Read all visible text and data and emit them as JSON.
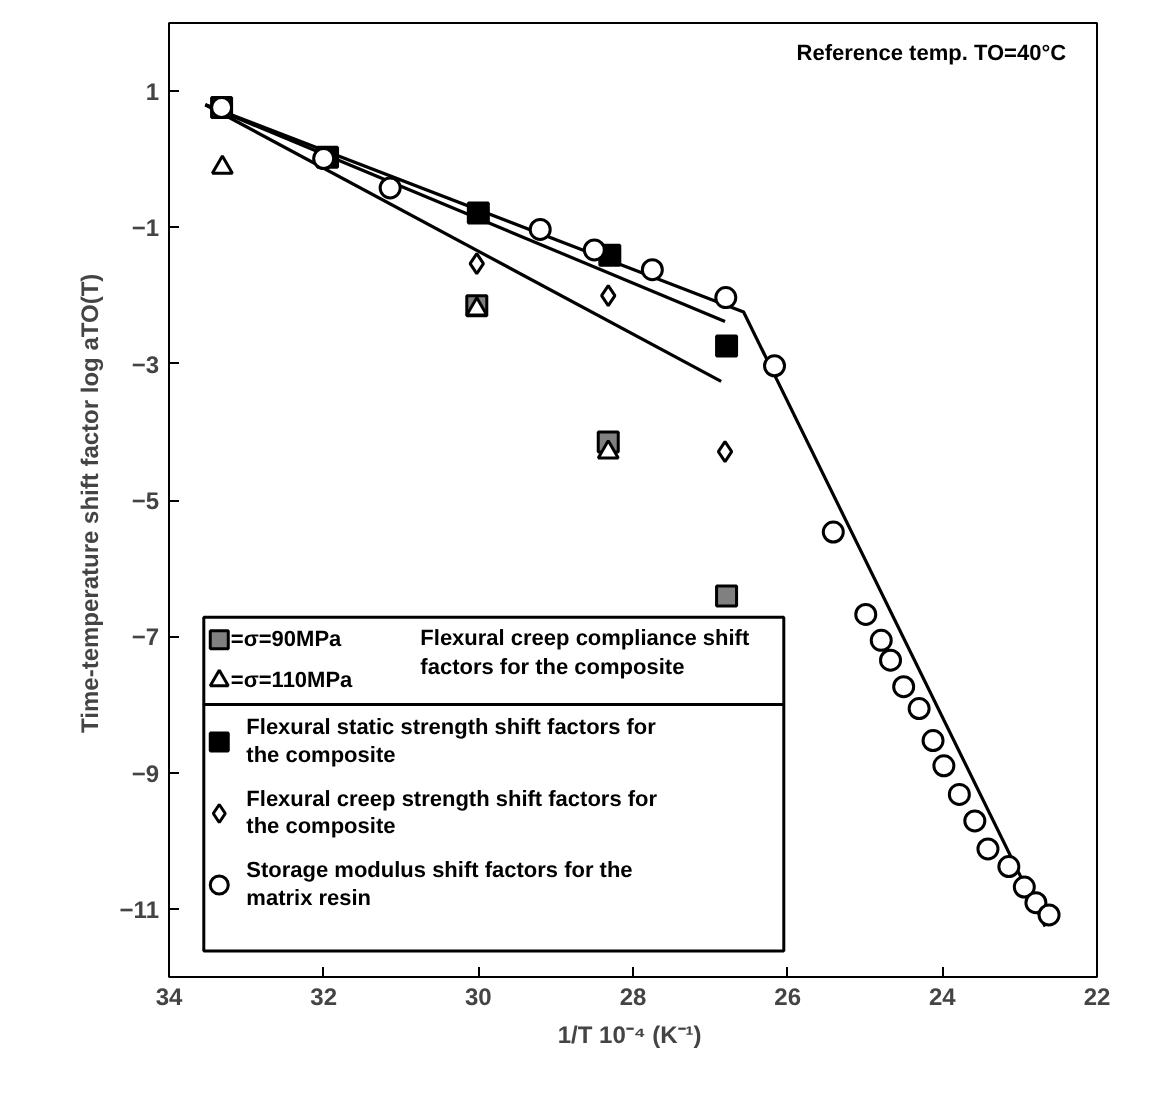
{
  "chart_data": {
    "type": "scatter",
    "xlabel": "1/T  10⁻⁴ (K⁻¹)",
    "ylabel": "Time-temperature shift factor  log aTO(T)",
    "xlim": [
      34,
      22
    ],
    "ylim": [
      -12,
      2
    ],
    "xticks": [
      34,
      32,
      30,
      28,
      26,
      24,
      22
    ],
    "yticks": [
      1,
      -1,
      -3,
      -5,
      -7,
      -9,
      -11
    ],
    "grid": false,
    "legend": "bottom left",
    "annotations": [
      "Reference temp. TO=40°C",
      "Flexural creep compliance shift factors for the composite"
    ],
    "series": [
      {
        "type": "line",
        "color": "#000000",
        "marker": "none",
        "x": [
          33.53,
          26.57,
          22.67
        ],
        "values": [
          0.8,
          -2.24,
          -11.26
        ]
      },
      {
        "type": "line",
        "color": "#000000",
        "marker": "none",
        "x": [
          33.53,
          26.81
        ],
        "values": [
          0.8,
          -2.38
        ]
      },
      {
        "type": "line",
        "color": "#000000",
        "marker": "none",
        "x": [
          33.53,
          26.86
        ],
        "values": [
          0.8,
          -3.26
        ]
      },
      {
        "name": "=σ=90MPa",
        "color": "#808080",
        "marker": "square",
        "x": [
          33.32,
          30.02,
          28.32,
          26.79
        ],
        "values": [
          0.76,
          -2.15,
          -4.15,
          -6.41
        ]
      },
      {
        "name": "=σ=110MPa",
        "color": "#ffffff",
        "marker": "triangle",
        "x": [
          33.31,
          30.02,
          28.32
        ],
        "values": [
          -0.12,
          -2.2,
          -4.3
        ]
      },
      {
        "name": "Flexural static strength shift factors for the composite",
        "color": "#000000",
        "marker": "square",
        "x": [
          31.95,
          30.0,
          28.3,
          26.79
        ],
        "values": [
          0.03,
          -0.79,
          -1.41,
          -2.74
        ]
      },
      {
        "name": "Flexural creep strength shift factors for the composite",
        "color": "#ffffff",
        "marker": "diamond",
        "x": [
          30.02,
          28.32,
          26.81
        ],
        "values": [
          -1.53,
          -2.0,
          -4.29
        ]
      },
      {
        "name": "Storage modulus shift factors for the matrix resin",
        "color": "#ffffff",
        "marker": "circle",
        "x": [
          33.32,
          32.0,
          31.14,
          29.2,
          28.5,
          27.75,
          26.8,
          26.17,
          25.41,
          24.99,
          24.79,
          24.67,
          24.5,
          24.3,
          24.12,
          23.98,
          23.78,
          23.58,
          23.41,
          23.14,
          22.94,
          22.79,
          22.62
        ],
        "values": [
          0.76,
          0.01,
          -0.42,
          -1.03,
          -1.33,
          -1.62,
          -2.03,
          -3.03,
          -5.47,
          -6.68,
          -7.06,
          -7.35,
          -7.74,
          -8.06,
          -8.53,
          -8.9,
          -9.32,
          -9.71,
          -10.12,
          -10.38,
          -10.68,
          -10.91,
          -11.09
        ]
      }
    ]
  }
}
